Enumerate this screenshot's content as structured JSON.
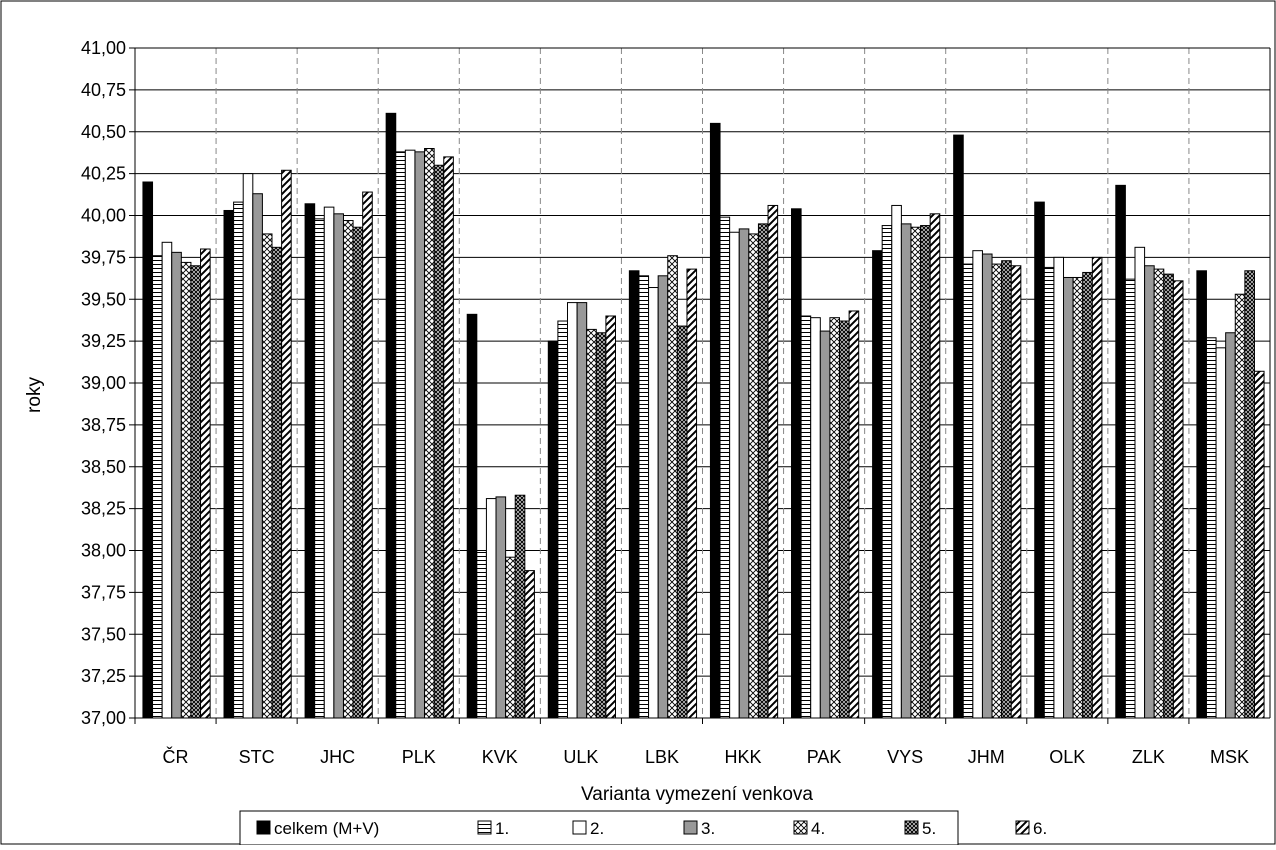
{
  "chart_data": {
    "type": "bar",
    "title": "",
    "xlabel": "Varianta vymezení venkova",
    "ylabel": "roky",
    "ylim": [
      37.0,
      41.0
    ],
    "ytick_step": 0.25,
    "grid": {
      "horizontal": true,
      "vertical": true,
      "vertical_style": "dashed"
    },
    "legend_position": "bottom",
    "categories": [
      "ČR",
      "STC",
      "JHC",
      "PLK",
      "KVK",
      "ULK",
      "LBK",
      "HKK",
      "PAK",
      "VYS",
      "JHM",
      "OLK",
      "ZLK",
      "MSK"
    ],
    "series": [
      {
        "name": "celkem (M+V)",
        "pattern": "solid-black",
        "values": [
          40.2,
          40.03,
          40.07,
          40.61,
          39.41,
          39.25,
          39.67,
          40.55,
          40.04,
          39.79,
          40.48,
          40.08,
          40.18,
          39.67
        ]
      },
      {
        "name": "1.",
        "pattern": "horizontal-lines",
        "values": [
          39.76,
          40.08,
          39.98,
          40.38,
          38.0,
          39.37,
          39.64,
          39.99,
          39.4,
          39.94,
          39.71,
          39.69,
          39.62,
          39.27
        ]
      },
      {
        "name": "2.",
        "pattern": "white",
        "values": [
          39.84,
          40.25,
          40.05,
          40.39,
          38.31,
          39.48,
          39.57,
          39.9,
          39.39,
          40.06,
          39.79,
          39.75,
          39.81,
          39.21
        ]
      },
      {
        "name": "3.",
        "pattern": "solid-gray",
        "values": [
          39.78,
          40.13,
          40.01,
          40.38,
          38.32,
          39.48,
          39.64,
          39.92,
          39.31,
          39.95,
          39.77,
          39.63,
          39.7,
          39.3
        ]
      },
      {
        "name": "4.",
        "pattern": "crosshatch",
        "values": [
          39.72,
          39.89,
          39.97,
          40.4,
          37.96,
          39.32,
          39.76,
          39.89,
          39.39,
          39.93,
          39.71,
          39.63,
          39.68,
          39.53
        ]
      },
      {
        "name": "5.",
        "pattern": "dense-check",
        "values": [
          39.7,
          39.81,
          39.93,
          40.3,
          38.33,
          39.3,
          39.34,
          39.95,
          39.37,
          39.94,
          39.73,
          39.66,
          39.65,
          39.67
        ]
      },
      {
        "name": "6.",
        "pattern": "diagonal-stripes",
        "values": [
          39.8,
          40.27,
          40.14,
          40.35,
          37.88,
          39.4,
          39.68,
          40.06,
          39.43,
          40.01,
          39.7,
          39.75,
          39.61,
          39.07
        ]
      }
    ]
  }
}
